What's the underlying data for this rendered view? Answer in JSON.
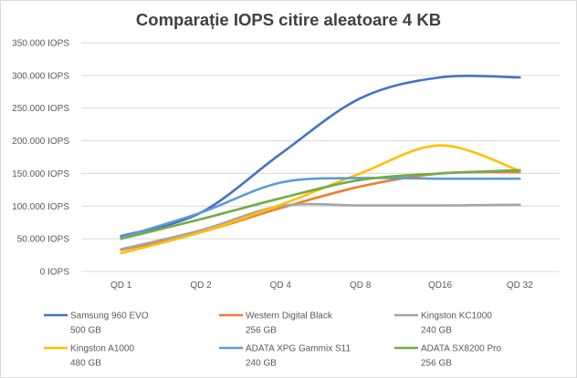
{
  "chart_data": {
    "type": "line",
    "title": "Comparație IOPS citire aleatoare 4 KB",
    "xlabel": "",
    "ylabel": "",
    "categories": [
      "QD 1",
      "QD 2",
      "QD 4",
      "QD 8",
      "QD16",
      "QD 32"
    ],
    "ylim": [
      0,
      350000
    ],
    "yticks": [
      {
        "value": 0,
        "label": "0 IOPS"
      },
      {
        "value": 50000,
        "label": "50.000 IOPS"
      },
      {
        "value": 100000,
        "label": "100.000 IOPS"
      },
      {
        "value": 150000,
        "label": "150.000 IOPS"
      },
      {
        "value": 200000,
        "label": "200.000 IOPS"
      },
      {
        "value": 250000,
        "label": "250.000 IOPS"
      },
      {
        "value": 300000,
        "label": "300.000 IOPS"
      },
      {
        "value": 350000,
        "label": "350.000 IOPS"
      }
    ],
    "grid": true,
    "legend_position": "bottom",
    "smooth": true,
    "series": [
      {
        "name": "Samsung 960 EVO",
        "subtitle": "500 GB",
        "color": "#4472c4",
        "values": [
          54000,
          90000,
          180000,
          265000,
          297000,
          297000
        ]
      },
      {
        "name": "Western Digital Black",
        "subtitle": "256 GB",
        "color": "#ed7d31",
        "values": [
          33000,
          60000,
          97000,
          130000,
          150000,
          152000
        ]
      },
      {
        "name": "Kingston KC1000",
        "subtitle": "240 GB",
        "color": "#a5a5a5",
        "values": [
          34000,
          63000,
          100000,
          101000,
          101000,
          102000
        ]
      },
      {
        "name": "Kingston A1000",
        "subtitle": "480 GB",
        "color": "#ffc000",
        "values": [
          28000,
          60000,
          102000,
          150000,
          193000,
          154000
        ]
      },
      {
        "name": "ADATA XPG Gammix S11",
        "subtitle": "240 GB",
        "color": "#5b9bd5",
        "values": [
          52000,
          90000,
          136000,
          143000,
          142000,
          142000
        ]
      },
      {
        "name": "ADATA SX8200 Pro",
        "subtitle": "256 GB",
        "color": "#70ad47",
        "values": [
          50000,
          80000,
          112000,
          140000,
          150000,
          155000
        ]
      }
    ]
  }
}
